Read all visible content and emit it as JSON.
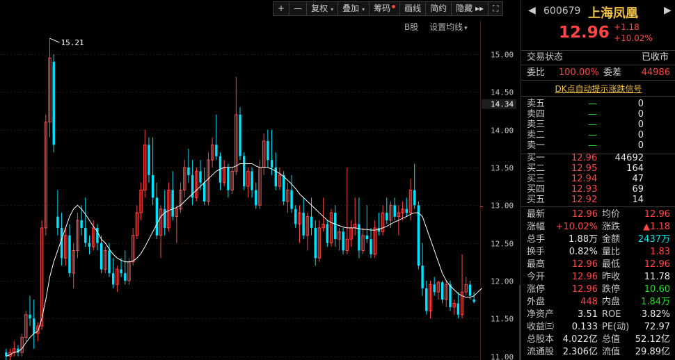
{
  "toolbar": {
    "items": [
      {
        "label": "+",
        "arrow": false,
        "dot": false
      },
      {
        "label": "—",
        "arrow": false,
        "dot": false
      },
      {
        "label": "复权",
        "arrow": true,
        "dot": false
      },
      {
        "label": "叠加",
        "arrow": true,
        "dot": false
      },
      {
        "label": "筹码",
        "arrow": false,
        "dot": true
      },
      {
        "label": "画线",
        "arrow": false,
        "dot": false
      },
      {
        "label": "简约",
        "arrow": false,
        "dot": false
      },
      {
        "label": "隐藏 ▸▸",
        "arrow": false,
        "dot": false
      },
      {
        "label": "⛶",
        "arrow": false,
        "dot": false
      }
    ],
    "sub": {
      "b_label": "B股",
      "ma_label": "设置均线",
      "ma_arrow": "▾"
    }
  },
  "chart_data": {
    "type": "candlestick",
    "ylim": [
      10.95,
      15.35
    ],
    "y_ticks": [
      "15.00",
      "14.50",
      "14.00",
      "13.50",
      "13.00",
      "12.50",
      "12.00",
      "11.50",
      "11.00"
    ],
    "current_marker": "14.34",
    "high_annotation": "15.21",
    "up_color": "#ff4444",
    "down_color": "#00e5ff",
    "ma_color": "#ffffff",
    "grid": true,
    "candles": [
      [
        11.05,
        11.1,
        10.95,
        11.0
      ],
      [
        11.0,
        11.1,
        10.95,
        11.05
      ],
      [
        11.05,
        11.2,
        11.0,
        11.1
      ],
      [
        11.1,
        11.15,
        11.0,
        11.05
      ],
      [
        11.05,
        11.3,
        11.0,
        11.25
      ],
      [
        11.25,
        11.6,
        11.2,
        11.55
      ],
      [
        11.55,
        11.8,
        11.4,
        11.5
      ],
      [
        11.5,
        11.75,
        11.1,
        11.3
      ],
      [
        11.3,
        11.45,
        11.2,
        11.4
      ],
      [
        11.4,
        12.8,
        11.35,
        12.7
      ],
      [
        12.7,
        14.2,
        12.6,
        14.1
      ],
      [
        14.1,
        15.21,
        13.9,
        14.95
      ],
      [
        14.9,
        15.0,
        13.7,
        13.8
      ],
      [
        12.85,
        13.2,
        12.6,
        12.7
      ],
      [
        12.7,
        12.9,
        12.2,
        12.3
      ],
      [
        12.3,
        12.7,
        12.2,
        12.6
      ],
      [
        12.6,
        12.75,
        12.05,
        12.1
      ],
      [
        12.1,
        12.5,
        11.9,
        12.4
      ],
      [
        12.4,
        12.9,
        12.3,
        12.8
      ],
      [
        12.8,
        13.0,
        12.6,
        12.7
      ],
      [
        12.7,
        13.1,
        12.45,
        12.5
      ],
      [
        12.5,
        12.6,
        12.35,
        12.45
      ],
      [
        12.45,
        12.8,
        12.4,
        12.7
      ],
      [
        12.7,
        12.75,
        12.4,
        12.5
      ],
      [
        12.5,
        12.6,
        12.1,
        12.15
      ],
      [
        12.15,
        12.45,
        12.1,
        12.4
      ],
      [
        12.4,
        12.5,
        12.05,
        12.1
      ],
      [
        12.1,
        12.3,
        11.9,
        11.95
      ],
      [
        11.95,
        12.2,
        11.85,
        12.15
      ],
      [
        12.15,
        12.3,
        12.05,
        12.1
      ],
      [
        12.1,
        12.4,
        11.95,
        12.0
      ],
      [
        12.0,
        12.3,
        11.95,
        12.25
      ],
      [
        12.25,
        12.7,
        12.2,
        12.6
      ],
      [
        12.6,
        13.0,
        12.55,
        12.9
      ],
      [
        12.9,
        13.3,
        12.8,
        13.2
      ],
      [
        13.2,
        14.0,
        13.1,
        13.8
      ],
      [
        13.8,
        13.9,
        13.3,
        13.4
      ],
      [
        13.4,
        13.9,
        13.0,
        13.1
      ],
      [
        13.1,
        13.3,
        12.55,
        12.6
      ],
      [
        12.6,
        13.0,
        12.3,
        12.95
      ],
      [
        12.95,
        13.2,
        12.6,
        12.7
      ],
      [
        12.7,
        13.3,
        12.65,
        13.2
      ],
      [
        13.2,
        13.45,
        12.8,
        12.85
      ],
      [
        12.85,
        13.0,
        12.5,
        12.95
      ],
      [
        12.95,
        13.3,
        12.9,
        13.2
      ],
      [
        13.2,
        13.6,
        13.1,
        13.5
      ],
      [
        13.5,
        13.75,
        13.3,
        13.4
      ],
      [
        13.4,
        13.6,
        13.0,
        13.1
      ],
      [
        13.1,
        13.5,
        13.05,
        13.45
      ],
      [
        13.45,
        13.6,
        13.2,
        13.3
      ],
      [
        13.3,
        13.5,
        13.0,
        13.05
      ],
      [
        13.05,
        13.7,
        13.0,
        13.6
      ],
      [
        13.6,
        13.9,
        13.5,
        13.8
      ],
      [
        13.8,
        14.2,
        13.6,
        13.65
      ],
      [
        13.65,
        13.7,
        13.2,
        13.3
      ],
      [
        13.3,
        13.6,
        13.25,
        13.5
      ],
      [
        13.5,
        13.55,
        13.1,
        13.2
      ],
      [
        13.2,
        13.5,
        13.15,
        13.45
      ],
      [
        13.45,
        14.7,
        13.4,
        14.2
      ],
      [
        14.2,
        14.3,
        13.6,
        13.65
      ],
      [
        13.65,
        13.7,
        13.2,
        13.25
      ],
      [
        13.25,
        13.5,
        13.1,
        13.45
      ],
      [
        13.45,
        13.5,
        13.1,
        13.2
      ],
      [
        13.2,
        13.3,
        12.95,
        13.0
      ],
      [
        13.0,
        13.6,
        12.95,
        13.5
      ],
      [
        13.5,
        13.95,
        13.4,
        13.85
      ],
      [
        13.85,
        14.0,
        13.5,
        13.6
      ],
      [
        13.6,
        14.0,
        13.4,
        13.5
      ],
      [
        13.5,
        13.7,
        13.2,
        13.25
      ],
      [
        13.25,
        13.5,
        13.2,
        13.4
      ],
      [
        13.4,
        13.45,
        13.0,
        13.05
      ],
      [
        13.05,
        13.3,
        12.9,
        13.2
      ],
      [
        13.2,
        13.4,
        12.9,
        12.95
      ],
      [
        12.95,
        13.0,
        12.7,
        12.75
      ],
      [
        12.75,
        13.0,
        12.5,
        12.9
      ],
      [
        12.9,
        13.1,
        12.55,
        12.6
      ],
      [
        12.6,
        12.9,
        12.4,
        12.85
      ],
      [
        12.85,
        13.1,
        12.6,
        12.7
      ],
      [
        12.7,
        12.8,
        12.2,
        12.3
      ],
      [
        12.3,
        12.8,
        12.25,
        12.7
      ],
      [
        12.7,
        13.1,
        12.65,
        12.75
      ],
      [
        12.75,
        12.8,
        12.45,
        12.5
      ],
      [
        12.5,
        12.95,
        12.45,
        12.9
      ],
      [
        12.9,
        13.0,
        12.45,
        12.55
      ],
      [
        12.55,
        12.7,
        12.4,
        12.65
      ],
      [
        12.65,
        12.7,
        12.35,
        12.4
      ],
      [
        12.4,
        13.5,
        12.35,
        12.55
      ],
      [
        12.55,
        12.8,
        12.45,
        12.7
      ],
      [
        12.7,
        13.1,
        12.6,
        12.75
      ],
      [
        12.75,
        13.1,
        12.3,
        12.4
      ],
      [
        12.4,
        12.7,
        12.35,
        12.6
      ],
      [
        12.6,
        13.0,
        12.5,
        12.55
      ],
      [
        12.55,
        12.7,
        12.3,
        12.35
      ],
      [
        12.35,
        12.8,
        12.3,
        12.7
      ],
      [
        12.7,
        12.9,
        12.6,
        12.65
      ],
      [
        12.65,
        13.0,
        12.6,
        12.9
      ],
      [
        12.9,
        13.1,
        12.75,
        12.8
      ],
      [
        12.8,
        13.05,
        12.7,
        13.0
      ],
      [
        13.0,
        13.1,
        12.8,
        12.85
      ],
      [
        12.85,
        13.0,
        12.6,
        12.9
      ],
      [
        12.9,
        13.05,
        12.8,
        12.95
      ],
      [
        12.95,
        13.1,
        12.85,
        12.9
      ],
      [
        12.9,
        13.35,
        12.8,
        13.2
      ],
      [
        13.2,
        13.55,
        12.95,
        13.0
      ],
      [
        13.0,
        13.05,
        12.15,
        12.2
      ],
      [
        12.2,
        12.5,
        11.8,
        11.9
      ],
      [
        11.9,
        12.0,
        11.55,
        11.6
      ],
      [
        11.6,
        12.0,
        11.5,
        11.95
      ],
      [
        11.95,
        12.05,
        11.8,
        11.85
      ],
      [
        11.85,
        12.0,
        11.75,
        11.98
      ],
      [
        11.98,
        12.0,
        11.7,
        11.75
      ],
      [
        11.75,
        12.0,
        11.65,
        11.95
      ],
      [
        11.95,
        12.0,
        11.6,
        11.65
      ],
      [
        11.65,
        11.75,
        11.55,
        11.7
      ],
      [
        11.7,
        11.85,
        11.5,
        11.55
      ],
      [
        11.55,
        12.35,
        11.5,
        11.85
      ],
      [
        11.85,
        12.05,
        11.8,
        11.95
      ],
      [
        11.95,
        12.0,
        11.75,
        11.8
      ],
      [
        11.75,
        11.85,
        11.7,
        11.72
      ]
    ],
    "ma": [
      11.0,
      11.02,
      11.05,
      11.06,
      11.1,
      11.18,
      11.25,
      11.3,
      11.33,
      11.5,
      11.75,
      12.05,
      12.25,
      12.4,
      12.55,
      12.7,
      12.85,
      12.95,
      13.0,
      12.95,
      12.88,
      12.8,
      12.72,
      12.65,
      12.55,
      12.5,
      12.42,
      12.35,
      12.3,
      12.27,
      12.25,
      12.25,
      12.26,
      12.3,
      12.36,
      12.45,
      12.55,
      12.65,
      12.75,
      12.85,
      12.9,
      12.93,
      12.95,
      12.97,
      13.0,
      13.05,
      13.1,
      13.15,
      13.2,
      13.25,
      13.3,
      13.35,
      13.4,
      13.45,
      13.48,
      13.5,
      13.5,
      13.5,
      13.52,
      13.55,
      13.55,
      13.55,
      13.55,
      13.52,
      13.5,
      13.5,
      13.5,
      13.48,
      13.45,
      13.42,
      13.38,
      13.33,
      13.28,
      13.22,
      13.15,
      13.1,
      13.05,
      13.0,
      12.95,
      12.9,
      12.85,
      12.8,
      12.77,
      12.75,
      12.73,
      12.71,
      12.7,
      12.7,
      12.7,
      12.69,
      12.68,
      12.68,
      12.67,
      12.67,
      12.68,
      12.7,
      12.72,
      12.75,
      12.78,
      12.8,
      12.83,
      12.85,
      12.88,
      12.9,
      12.9,
      12.85,
      12.7,
      12.55,
      12.4,
      12.25,
      12.1,
      12.0,
      11.93,
      11.88,
      11.83,
      11.8,
      11.78,
      11.78,
      11.8,
      11.85,
      11.9
    ]
  },
  "panel": {
    "back": "◀",
    "fwd": "▶",
    "code": "600679",
    "name": "上海凤凰",
    "price": "12.96",
    "change": "+1.18",
    "change_pct": "+10.02%",
    "status_label": "交易状态",
    "status_value": "已收市",
    "wb_label": "委比",
    "wb_value": "100.00%",
    "wc_label": "委差",
    "wc_value": "44986",
    "dk_link": "DK点自动提示涨跌信号",
    "sells": [
      {
        "label": "卖五",
        "price": "—",
        "vol": "0"
      },
      {
        "label": "卖四",
        "price": "—",
        "vol": "0"
      },
      {
        "label": "卖三",
        "price": "—",
        "vol": "0"
      },
      {
        "label": "卖二",
        "price": "—",
        "vol": "0"
      },
      {
        "label": "卖一",
        "price": "—",
        "vol": "0"
      }
    ],
    "buys": [
      {
        "label": "买一",
        "price": "12.96",
        "vol": "44692"
      },
      {
        "label": "买二",
        "price": "12.95",
        "vol": "164"
      },
      {
        "label": "买三",
        "price": "12.94",
        "vol": "47"
      },
      {
        "label": "买四",
        "price": "12.93",
        "vol": "69"
      },
      {
        "label": "买五",
        "price": "12.92",
        "vol": "14"
      }
    ],
    "stats": [
      {
        "l1": "最新",
        "v1": "12.96",
        "c1": "red",
        "l2": "均价",
        "v2": "12.96",
        "c2": "red"
      },
      {
        "l1": "涨幅",
        "v1": "+10.02%",
        "c1": "red",
        "l2": "涨跌",
        "v2": "▲1.18",
        "c2": "red"
      },
      {
        "l1": "总手",
        "v1": "1.88万",
        "c1": "white",
        "l2": "金额",
        "v2": "2437万",
        "c2": "cyan"
      },
      {
        "l1": "换手",
        "v1": "0.82%",
        "c1": "white",
        "l2": "量比",
        "v2": "1.83",
        "c2": "red"
      },
      {
        "l1": "最高",
        "v1": "12.96",
        "c1": "red",
        "l2": "最低",
        "v2": "12.96",
        "c2": "red"
      },
      {
        "l1": "今开",
        "v1": "12.96",
        "c1": "red",
        "l2": "昨收",
        "v2": "11.78",
        "c2": "white"
      },
      {
        "l1": "涨停",
        "v1": "12.96",
        "c1": "red",
        "l2": "跌停",
        "v2": "10.60",
        "c2": "green"
      },
      {
        "l1": "外盘",
        "v1": "448",
        "c1": "red",
        "l2": "内盘",
        "v2": "1.84万",
        "c2": "green"
      },
      {
        "l1": "净资产",
        "v1": "3.51",
        "c1": "white",
        "l2": "ROE",
        "v2": "3.82%",
        "c2": "white"
      },
      {
        "l1": "收益㈢",
        "v1": "0.133",
        "c1": "white",
        "l2": "PE(动)",
        "v2": "72.97",
        "c2": "white"
      },
      {
        "l1": "总股本",
        "v1": "4.022亿",
        "c1": "white",
        "l2": "总值",
        "v2": "52.12亿",
        "c2": "white"
      },
      {
        "l1": "流通股",
        "v1": "2.306亿",
        "c1": "white",
        "l2": "流值",
        "v2": "29.89亿",
        "c2": "white"
      }
    ]
  }
}
